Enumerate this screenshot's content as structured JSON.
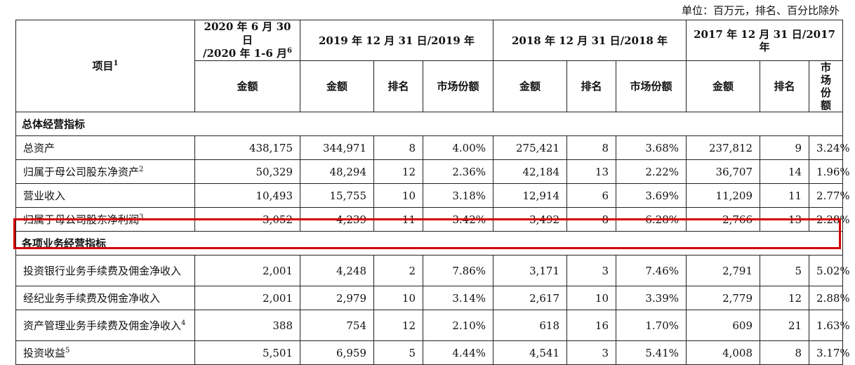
{
  "unit_note": "单位：百万元，排名、百分比除外",
  "header": {
    "item_label": "项目",
    "item_sup": "1",
    "col_2020_line1": "2020 年 6 月 30 日",
    "col_2020_line2": "/2020 年 1-6 月",
    "col_2020_sup": "6",
    "col_2019": "2019 年 12 月 31 日/2019 年",
    "col_2018": "2018 年 12 月 31 日/2018 年",
    "col_2017": "2017 年 12 月 31 日/2017 年",
    "amount": "金额",
    "rank": "排名",
    "share": "市场份额"
  },
  "sections": [
    {
      "title": "总体经营指标",
      "rows": [
        {
          "label": "总资产",
          "sup": "",
          "values": [
            "438,175",
            "344,971",
            "8",
            "4.00%",
            "275,421",
            "8",
            "3.68%",
            "237,812",
            "9",
            "3.24%"
          ]
        },
        {
          "label": "归属于母公司股东净资产",
          "sup": "2",
          "values": [
            "50,329",
            "48,294",
            "12",
            "2.36%",
            "42,184",
            "13",
            "2.22%",
            "36,707",
            "14",
            "1.96%"
          ]
        },
        {
          "label": "营业收入",
          "sup": "",
          "values": [
            "10,493",
            "15,755",
            "10",
            "3.18%",
            "12,914",
            "6",
            "3.69%",
            "11,209",
            "11",
            "2.77%"
          ]
        },
        {
          "label": "归属于母公司股东净利润",
          "sup": "3",
          "values": [
            "3,052",
            "4,239",
            "11",
            "3.42%",
            "3,492",
            "8",
            "6.28%",
            "2,766",
            "13",
            "2.28%"
          ]
        }
      ]
    },
    {
      "title": "各项业务经营指标",
      "rows": [
        {
          "label": "投资银行业务手续费及佣金净收入",
          "sup": "",
          "values": [
            "2,001",
            "4,248",
            "2",
            "7.86%",
            "3,171",
            "3",
            "7.46%",
            "2,791",
            "5",
            "5.02%"
          ]
        },
        {
          "label": "经纪业务手续费及佣金净收入",
          "sup": "",
          "values": [
            "2,001",
            "2,979",
            "10",
            "3.14%",
            "2,617",
            "10",
            "3.39%",
            "2,779",
            "12",
            "2.88%"
          ]
        },
        {
          "label": "资产管理业务手续费及佣金净收入",
          "sup": "4",
          "values": [
            "388",
            "754",
            "12",
            "2.10%",
            "618",
            "16",
            "1.70%",
            "609",
            "21",
            "1.63%"
          ]
        },
        {
          "label": "投资收益",
          "sup": "5",
          "values": [
            "5,501",
            "6,959",
            "5",
            "4.44%",
            "4,541",
            "3",
            "5.41%",
            "4,008",
            "8",
            "3.17%"
          ]
        }
      ]
    }
  ]
}
